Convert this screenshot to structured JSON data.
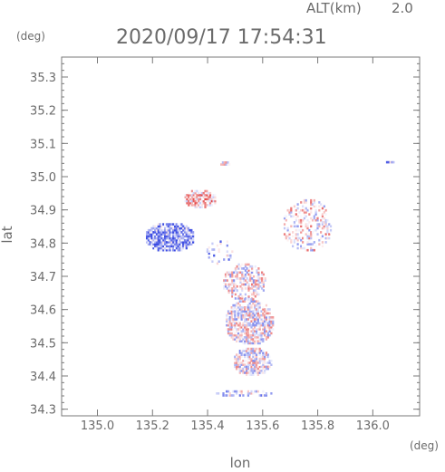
{
  "chart_data": {
    "type": "heatmap",
    "header": {
      "altitude_label": "ALT(km)",
      "altitude_value": "2.0",
      "datetime": "2020/09/17 17:54:31"
    },
    "xlabel": "lon",
    "ylabel": "lat",
    "x_unit": "(deg)",
    "y_unit": "(deg)",
    "xlim": [
      134.87,
      136.17
    ],
    "ylim": [
      34.28,
      35.36
    ],
    "x_ticks": [
      "135.0",
      "135.2",
      "135.4",
      "135.6",
      "135.8",
      "136.0"
    ],
    "y_ticks": [
      "34.3",
      "34.4",
      "34.5",
      "34.6",
      "34.7",
      "34.8",
      "34.9",
      "35.0",
      "35.1",
      "35.2",
      "35.3"
    ],
    "grid": false,
    "colors": {
      "positive": "#e23b3b",
      "negative": "#3b4be2",
      "near_zero": "#ffffff",
      "frame": "#7a7a7a"
    },
    "echo_regions": [
      {
        "lon_center": 135.26,
        "lat_center": 34.815,
        "lon_halfwidth": 0.09,
        "lat_halfwidth": 0.045,
        "sign_bias": -0.75,
        "density": 0.95
      },
      {
        "lon_center": 135.37,
        "lat_center": 34.93,
        "lon_halfwidth": 0.06,
        "lat_halfwidth": 0.03,
        "sign_bias": 0.55,
        "density": 0.75
      },
      {
        "lon_center": 135.46,
        "lat_center": 35.035,
        "lon_halfwidth": 0.02,
        "lat_halfwidth": 0.007,
        "sign_bias": 0.35,
        "density": 0.9
      },
      {
        "lon_center": 135.76,
        "lat_center": 34.85,
        "lon_halfwidth": 0.09,
        "lat_halfwidth": 0.08,
        "sign_bias": 0.15,
        "density": 0.35
      },
      {
        "lon_center": 135.53,
        "lat_center": 34.68,
        "lon_halfwidth": 0.08,
        "lat_halfwidth": 0.055,
        "sign_bias": 0.05,
        "density": 0.55
      },
      {
        "lon_center": 135.55,
        "lat_center": 34.56,
        "lon_halfwidth": 0.09,
        "lat_halfwidth": 0.07,
        "sign_bias": 0.0,
        "density": 0.75
      },
      {
        "lon_center": 135.56,
        "lat_center": 34.44,
        "lon_halfwidth": 0.07,
        "lat_halfwidth": 0.045,
        "sign_bias": -0.05,
        "density": 0.7
      },
      {
        "lon_center": 135.53,
        "lat_center": 34.345,
        "lon_halfwidth": 0.1,
        "lat_halfwidth": 0.012,
        "sign_bias": -0.3,
        "density": 0.45
      },
      {
        "lon_center": 135.44,
        "lat_center": 34.77,
        "lon_halfwidth": 0.05,
        "lat_halfwidth": 0.04,
        "sign_bias": -0.5,
        "density": 0.18
      },
      {
        "lon_center": 136.06,
        "lat_center": 35.04,
        "lon_halfwidth": 0.018,
        "lat_halfwidth": 0.005,
        "sign_bias": -0.8,
        "density": 0.95
      }
    ]
  }
}
